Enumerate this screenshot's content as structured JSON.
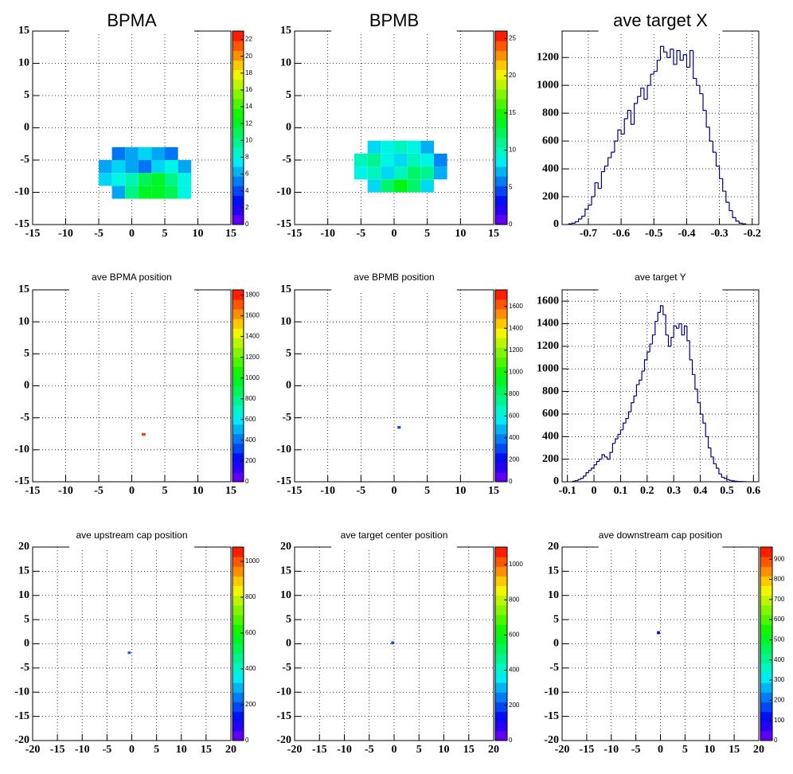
{
  "chart_data": [
    {
      "type": "heatmap",
      "title": "BPMA",
      "xlim": [
        -15,
        15
      ],
      "ylim": [
        -15,
        15
      ],
      "xticks": [
        -15,
        -10,
        -5,
        0,
        5,
        10,
        15
      ],
      "yticks": [
        -15,
        -10,
        -5,
        0,
        5,
        10,
        15
      ],
      "grid": true,
      "xbins": [
        -5,
        -3,
        -1,
        1,
        3,
        5,
        7,
        9
      ],
      "ybins": [
        -11,
        -9,
        -7,
        -5,
        -3
      ],
      "z": [
        [
          null,
          6,
          10,
          12,
          12,
          11,
          8
        ],
        [
          7,
          8,
          9,
          11,
          12,
          10,
          8
        ],
        [
          6,
          7,
          6,
          5,
          7,
          8,
          6
        ],
        [
          null,
          5,
          6,
          7,
          6,
          5,
          null
        ]
      ],
      "zlim": [
        0,
        23
      ],
      "zticks": [
        0,
        2,
        4,
        6,
        8,
        10,
        12,
        14,
        16,
        18,
        20,
        22
      ]
    },
    {
      "type": "heatmap",
      "title": "BPMB",
      "xlim": [
        -15,
        15
      ],
      "ylim": [
        -15,
        15
      ],
      "xticks": [
        -15,
        -10,
        -5,
        0,
        5,
        10,
        15
      ],
      "yticks": [
        -15,
        -10,
        -5,
        0,
        5,
        10,
        15
      ],
      "grid": true,
      "xbins": [
        -6,
        -4,
        -2,
        0,
        2,
        4,
        6,
        8
      ],
      "ybins": [
        -10,
        -8,
        -6,
        -4,
        -2
      ],
      "z": [
        [
          null,
          8,
          12,
          14,
          12,
          8,
          null
        ],
        [
          9,
          10,
          8,
          10,
          12,
          11,
          7
        ],
        [
          10,
          11,
          9,
          8,
          10,
          9,
          6
        ],
        [
          null,
          8,
          9,
          10,
          9,
          7,
          null
        ]
      ],
      "zlim": [
        0,
        26
      ],
      "zticks": [
        0,
        5,
        10,
        15,
        20,
        25
      ]
    },
    {
      "type": "histogram",
      "title": "ave target X",
      "xlim": [
        -0.78,
        -0.18
      ],
      "ylim": [
        0,
        1390
      ],
      "xticks": [
        -0.7,
        -0.6,
        -0.5,
        -0.4,
        -0.3,
        -0.2
      ],
      "yticks": [
        0,
        200,
        400,
        600,
        800,
        1000,
        1200
      ],
      "grid": true,
      "color": "#000080",
      "bins": [
        -0.76,
        -0.75,
        -0.74,
        -0.73,
        -0.72,
        -0.71,
        -0.7,
        -0.69,
        -0.68,
        -0.67,
        -0.66,
        -0.65,
        -0.64,
        -0.63,
        -0.62,
        -0.61,
        -0.6,
        -0.59,
        -0.58,
        -0.57,
        -0.56,
        -0.55,
        -0.54,
        -0.53,
        -0.52,
        -0.51,
        -0.5,
        -0.49,
        -0.48,
        -0.47,
        -0.46,
        -0.45,
        -0.44,
        -0.43,
        -0.42,
        -0.41,
        -0.4,
        -0.39,
        -0.38,
        -0.37,
        -0.36,
        -0.35,
        -0.34,
        -0.33,
        -0.32,
        -0.31,
        -0.3,
        -0.29,
        -0.28,
        -0.27,
        -0.26,
        -0.25,
        -0.24,
        -0.23,
        -0.22
      ],
      "values": [
        5,
        10,
        20,
        40,
        60,
        110,
        140,
        200,
        300,
        260,
        380,
        420,
        480,
        520,
        600,
        680,
        650,
        760,
        820,
        720,
        870,
        920,
        980,
        900,
        1000,
        1080,
        1100,
        1180,
        1280,
        1240,
        1200,
        1260,
        1150,
        1250,
        1180,
        1220,
        1130,
        1250,
        1050,
        1000,
        940,
        820,
        700,
        600,
        520,
        420,
        330,
        240,
        160,
        100,
        50,
        25,
        10,
        5
      ]
    },
    {
      "type": "heatmap",
      "title": "ave BPMA position",
      "xlim": [
        -15,
        15
      ],
      "ylim": [
        -15,
        15
      ],
      "xticks": [
        -15,
        -10,
        -5,
        0,
        5,
        10,
        15
      ],
      "yticks": [
        -15,
        -10,
        -5,
        0,
        5,
        10,
        15
      ],
      "grid": true,
      "xbins": [
        1.5,
        2.1
      ],
      "ybins": [
        -7.8,
        -7.4
      ],
      "z": [
        [
          1750
        ]
      ],
      "zlim": [
        0,
        1850
      ],
      "zticks": [
        0,
        200,
        400,
        600,
        800,
        1000,
        1200,
        1400,
        1600,
        1800
      ]
    },
    {
      "type": "heatmap",
      "title": "ave BPMB position",
      "xlim": [
        -15,
        15
      ],
      "ylim": [
        -15,
        15
      ],
      "xticks": [
        -15,
        -10,
        -5,
        0,
        5,
        10,
        15
      ],
      "yticks": [
        -15,
        -10,
        -5,
        0,
        5,
        10,
        15
      ],
      "grid": true,
      "xbins": [
        0.5,
        1.0
      ],
      "ybins": [
        -6.7,
        -6.3
      ],
      "z": [
        [
          300
        ]
      ],
      "zlim": [
        0,
        1750
      ],
      "zticks": [
        0,
        200,
        400,
        600,
        800,
        1000,
        1200,
        1400,
        1600
      ]
    },
    {
      "type": "histogram",
      "title": "ave target Y",
      "xlim": [
        -0.12,
        0.62
      ],
      "ylim": [
        0,
        1700
      ],
      "xticks": [
        -0.1,
        0,
        0.1,
        0.2,
        0.3,
        0.4,
        0.5,
        0.6
      ],
      "yticks": [
        0,
        200,
        400,
        600,
        800,
        1000,
        1200,
        1400,
        1600
      ],
      "grid": true,
      "color": "#000080",
      "bins": [
        -0.08,
        -0.07,
        -0.06,
        -0.05,
        -0.04,
        -0.03,
        -0.02,
        -0.01,
        0,
        0.01,
        0.02,
        0.03,
        0.04,
        0.05,
        0.06,
        0.07,
        0.08,
        0.09,
        0.1,
        0.11,
        0.12,
        0.13,
        0.14,
        0.15,
        0.16,
        0.17,
        0.18,
        0.19,
        0.2,
        0.21,
        0.22,
        0.23,
        0.24,
        0.25,
        0.26,
        0.27,
        0.28,
        0.29,
        0.3,
        0.31,
        0.32,
        0.33,
        0.34,
        0.35,
        0.36,
        0.37,
        0.38,
        0.39,
        0.4,
        0.41,
        0.42,
        0.43,
        0.44,
        0.45,
        0.46,
        0.47,
        0.48,
        0.49,
        0.5,
        0.51,
        0.52,
        0.53,
        0.54,
        0.55,
        0.56,
        0.57
      ],
      "values": [
        5,
        10,
        20,
        30,
        50,
        80,
        100,
        120,
        150,
        180,
        200,
        240,
        220,
        200,
        260,
        340,
        380,
        420,
        460,
        520,
        560,
        620,
        700,
        760,
        860,
        900,
        980,
        1080,
        1150,
        1220,
        1300,
        1420,
        1500,
        1560,
        1480,
        1300,
        1200,
        1280,
        1380,
        1360,
        1400,
        1300,
        1380,
        1250,
        1080,
        950,
        820,
        700,
        600,
        520,
        400,
        300,
        220,
        160,
        120,
        70,
        40,
        30,
        20,
        12,
        8,
        5,
        3,
        2,
        1
      ]
    },
    {
      "type": "heatmap",
      "title": "ave upstream cap position",
      "xlim": [
        -20,
        20
      ],
      "ylim": [
        -20,
        20
      ],
      "xticks": [
        -20,
        -15,
        -10,
        -5,
        0,
        5,
        10,
        15,
        20
      ],
      "yticks": [
        -20,
        -15,
        -10,
        -5,
        0,
        5,
        10,
        15,
        20
      ],
      "grid": true,
      "xbins": [
        -0.8,
        -0.2
      ],
      "ybins": [
        -2.1,
        -1.6
      ],
      "z": [
        [
          200
        ]
      ],
      "zlim": [
        0,
        1080
      ],
      "zticks": [
        0,
        200,
        400,
        600,
        800,
        1000
      ]
    },
    {
      "type": "heatmap",
      "title": "ave target center  position",
      "xlim": [
        -20,
        20
      ],
      "ylim": [
        -20,
        20
      ],
      "xticks": [
        -20,
        -15,
        -10,
        -5,
        0,
        5,
        10,
        15,
        20
      ],
      "yticks": [
        -20,
        -15,
        -10,
        -5,
        0,
        5,
        10,
        15,
        20
      ],
      "grid": true,
      "xbins": [
        -0.6,
        0
      ],
      "ybins": [
        -0.1,
        0.5
      ],
      "z": [
        [
          200
        ]
      ],
      "zlim": [
        0,
        1100
      ],
      "zticks": [
        0,
        200,
        400,
        600,
        800,
        1000
      ]
    },
    {
      "type": "heatmap",
      "title": "ave downstream cap position",
      "xlim": [
        -20,
        20
      ],
      "ylim": [
        -20,
        20
      ],
      "xticks": [
        -20,
        -15,
        -10,
        -5,
        0,
        5,
        10,
        15,
        20
      ],
      "yticks": [
        -20,
        -15,
        -10,
        -5,
        0,
        5,
        10,
        15,
        20
      ],
      "grid": true,
      "xbins": [
        -0.7,
        -0.1
      ],
      "ybins": [
        2.0,
        2.6
      ],
      "z": [
        [
          100
        ]
      ],
      "zlim": [
        0,
        960
      ],
      "zticks": [
        0,
        100,
        200,
        300,
        400,
        500,
        600,
        700,
        800,
        900
      ]
    }
  ]
}
